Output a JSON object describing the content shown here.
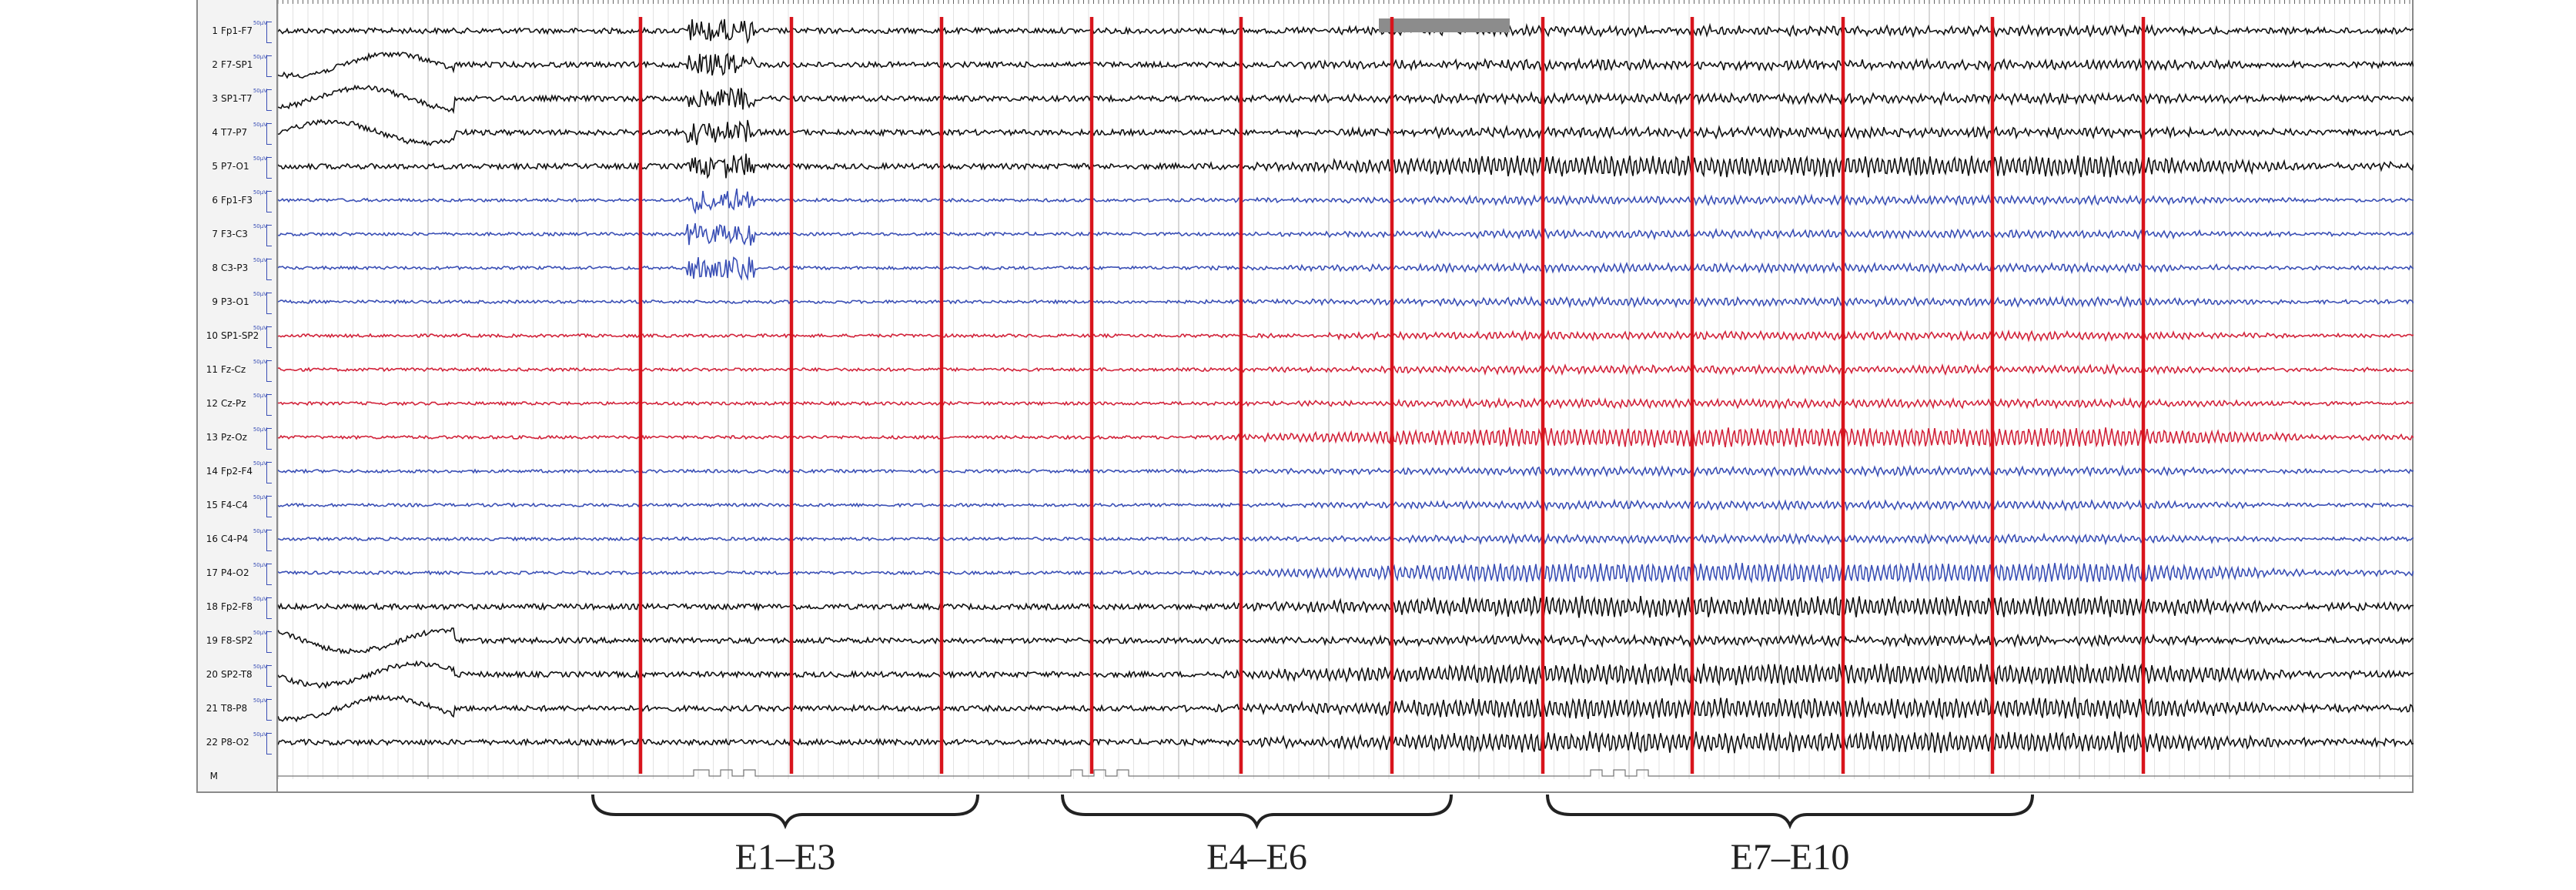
{
  "channels": [
    {
      "num": "1",
      "label": "Fp1-F7",
      "scale": "50µV",
      "color": "#111111"
    },
    {
      "num": "2",
      "label": "F7-SP1",
      "scale": "50µV",
      "color": "#111111"
    },
    {
      "num": "3",
      "label": "SP1-T7",
      "scale": "50µV",
      "color": "#111111"
    },
    {
      "num": "4",
      "label": "T7-P7",
      "scale": "50µV",
      "color": "#111111"
    },
    {
      "num": "5",
      "label": "P7-O1",
      "scale": "50µV",
      "color": "#111111"
    },
    {
      "num": "6",
      "label": "Fp1-F3",
      "scale": "50µV",
      "color": "#3a4fb5"
    },
    {
      "num": "7",
      "label": "F3-C3",
      "scale": "50µV",
      "color": "#3a4fb5"
    },
    {
      "num": "8",
      "label": "C3-P3",
      "scale": "50µV",
      "color": "#3a4fb5"
    },
    {
      "num": "9",
      "label": "P3-O1",
      "scale": "50µV",
      "color": "#3a4fb5"
    },
    {
      "num": "10",
      "label": "SP1-SP2",
      "scale": "50µV",
      "color": "#d2233a"
    },
    {
      "num": "11",
      "label": "Fz-Cz",
      "scale": "50µV",
      "color": "#d2233a"
    },
    {
      "num": "12",
      "label": "Cz-Pz",
      "scale": "50µV",
      "color": "#d2233a"
    },
    {
      "num": "13",
      "label": "Pz-Oz",
      "scale": "50µV",
      "color": "#d2233a"
    },
    {
      "num": "14",
      "label": "Fp2-F4",
      "scale": "50µV",
      "color": "#3a4fb5"
    },
    {
      "num": "15",
      "label": "F4-C4",
      "scale": "50µV",
      "color": "#3a4fb5"
    },
    {
      "num": "16",
      "label": "C4-P4",
      "scale": "50µV",
      "color": "#3a4fb5"
    },
    {
      "num": "17",
      "label": "P4-O2",
      "scale": "50µV",
      "color": "#3a4fb5"
    },
    {
      "num": "18",
      "label": "Fp2-F8",
      "scale": "50µV",
      "color": "#111111"
    },
    {
      "num": "19",
      "label": "F8-SP2",
      "scale": "50µV",
      "color": "#111111"
    },
    {
      "num": "20",
      "label": "SP2-T8",
      "scale": "50µV",
      "color": "#111111"
    },
    {
      "num": "21",
      "label": "T8-P8",
      "scale": "50µV",
      "color": "#111111"
    },
    {
      "num": "22",
      "label": "P8-O2",
      "scale": "50µV",
      "color": "#111111"
    },
    {
      "num": "M",
      "label": "",
      "scale": "",
      "color": "#111111"
    }
  ],
  "epoch_groups": [
    {
      "label": "E1–E3"
    },
    {
      "label": "E4–E6"
    },
    {
      "label": "E7–E10"
    }
  ],
  "colors": {
    "epoch_marker": "#d8141c",
    "grid_major": "#bdbdbd",
    "grid_minor": "#e2e2e2",
    "event_box": "#8c8c8c"
  }
}
